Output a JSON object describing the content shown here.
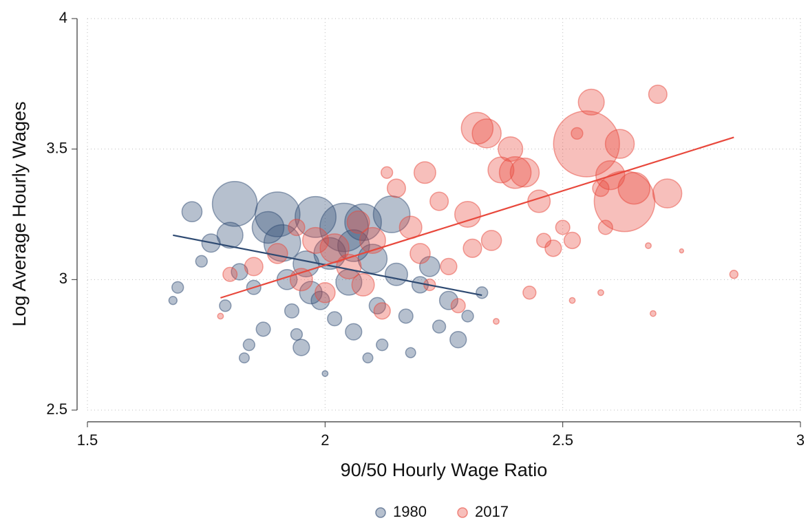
{
  "chart_data": {
    "type": "scatter",
    "xlabel": "90/50 Hourly Wage Ratio",
    "ylabel": "Log Average Hourly Wages",
    "xlim": [
      1.5,
      3
    ],
    "ylim": [
      2.5,
      4
    ],
    "xticks": [
      1.5,
      2,
      2.5,
      3
    ],
    "yticks": [
      2.5,
      3,
      3.5,
      4
    ],
    "grid": true,
    "legend": "bottom",
    "series": [
      {
        "name": "1980",
        "color": "#2e4a72",
        "x": [
          1.69,
          1.68,
          1.72,
          1.74,
          1.76,
          1.81,
          1.8,
          1.79,
          1.82,
          1.84,
          1.85,
          1.88,
          1.9,
          1.91,
          1.92,
          1.93,
          1.94,
          1.95,
          1.96,
          1.98,
          1.99,
          2.0,
          2.01,
          2.02,
          2.04,
          2.05,
          2.06,
          2.08,
          2.1,
          2.11,
          2.12,
          2.14,
          2.15,
          2.17,
          2.18,
          2.2,
          2.22,
          2.24,
          2.26,
          2.28,
          2.3,
          2.33,
          1.87,
          2.06,
          1.97,
          2.09,
          1.83
        ],
        "y": [
          2.97,
          2.92,
          3.26,
          3.07,
          3.14,
          3.29,
          3.17,
          2.9,
          3.03,
          2.75,
          2.97,
          3.2,
          3.25,
          3.14,
          3.0,
          2.88,
          2.79,
          2.74,
          3.06,
          3.24,
          2.92,
          2.64,
          3.1,
          2.85,
          3.2,
          2.99,
          2.8,
          3.22,
          3.08,
          2.9,
          2.75,
          3.25,
          3.02,
          2.86,
          2.72,
          2.98,
          3.05,
          2.82,
          2.92,
          2.77,
          2.86,
          2.95,
          2.81,
          3.13,
          2.95,
          2.7,
          2.7
        ],
        "sizes": [
          4,
          2,
          12,
          4,
          10,
          60,
          20,
          4,
          8,
          4,
          6,
          30,
          60,
          40,
          12,
          6,
          4,
          8,
          20,
          50,
          10,
          1,
          30,
          6,
          70,
          20,
          8,
          40,
          25,
          8,
          4,
          40,
          15,
          6,
          3,
          8,
          12,
          5,
          10,
          8,
          4,
          4,
          6,
          30,
          15,
          3,
          3
        ],
        "fit": {
          "x": [
            1.68,
            2.33
          ],
          "y": [
            3.17,
            2.94
          ]
        }
      },
      {
        "name": "2017",
        "color": "#e8483c",
        "x": [
          1.78,
          1.8,
          1.85,
          1.9,
          1.95,
          1.98,
          2.0,
          2.02,
          2.05,
          2.08,
          2.1,
          2.12,
          2.13,
          2.15,
          2.18,
          2.2,
          2.21,
          2.24,
          2.26,
          2.28,
          2.3,
          2.31,
          2.32,
          2.34,
          2.35,
          2.36,
          2.37,
          2.39,
          2.4,
          2.42,
          2.43,
          2.45,
          2.46,
          2.48,
          2.5,
          2.52,
          2.53,
          2.55,
          2.56,
          2.58,
          2.59,
          2.6,
          2.62,
          2.63,
          2.65,
          2.68,
          2.69,
          2.7,
          2.72,
          2.75,
          2.86,
          2.52,
          2.58,
          1.94,
          2.07,
          2.22
        ],
        "y": [
          2.86,
          3.02,
          3.05,
          3.1,
          3.0,
          3.15,
          2.95,
          3.12,
          3.05,
          2.98,
          3.15,
          2.88,
          3.41,
          3.35,
          3.2,
          3.1,
          3.41,
          3.3,
          3.05,
          2.9,
          3.25,
          3.12,
          3.58,
          3.56,
          3.15,
          2.84,
          3.42,
          3.5,
          3.41,
          3.41,
          2.95,
          3.3,
          3.15,
          3.12,
          3.2,
          3.15,
          3.56,
          3.52,
          3.68,
          3.35,
          3.2,
          3.4,
          3.52,
          3.3,
          3.35,
          3.13,
          2.87,
          3.71,
          3.33,
          3.11,
          3.02,
          2.92,
          2.95,
          3.2,
          3.22,
          2.98
        ],
        "sizes": [
          1,
          6,
          10,
          12,
          15,
          20,
          12,
          25,
          18,
          15,
          20,
          8,
          4,
          10,
          15,
          12,
          14,
          10,
          8,
          6,
          20,
          10,
          30,
          25,
          12,
          1,
          20,
          18,
          30,
          25,
          5,
          15,
          6,
          8,
          6,
          8,
          4,
          130,
          20,
          8,
          6,
          25,
          25,
          110,
          30,
          1,
          1,
          10,
          25,
          0.5,
          2,
          1,
          1,
          8,
          15,
          4
        ],
        "fit": {
          "x": [
            1.78,
            2.86
          ],
          "y": [
            2.93,
            3.545
          ]
        }
      }
    ]
  }
}
